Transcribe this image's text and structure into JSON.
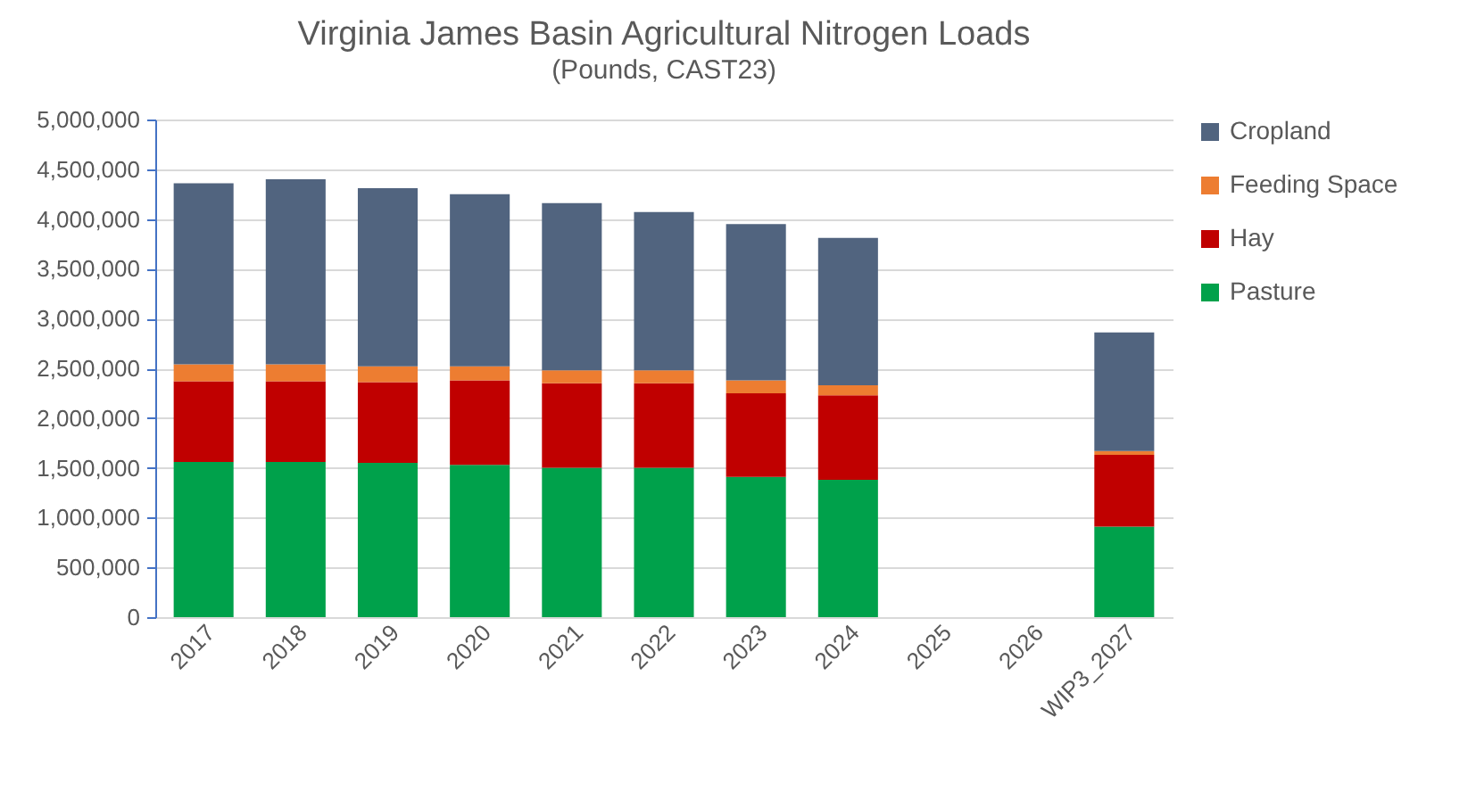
{
  "chart_data": {
    "type": "bar",
    "title": "Virginia James Basin Agricultural Nitrogen Loads",
    "subtitle": "(Pounds, CAST23)",
    "stacked": true,
    "categories": [
      "2017",
      "2018",
      "2019",
      "2020",
      "2021",
      "2022",
      "2023",
      "2024",
      "2025",
      "2026",
      "WIP3_2027"
    ],
    "series": [
      {
        "name": "Pasture",
        "color": "#00a14b",
        "values": [
          1560000,
          1560000,
          1550000,
          1530000,
          1500000,
          1500000,
          1410000,
          1380000,
          null,
          null,
          910000
        ]
      },
      {
        "name": "Hay",
        "color": "#c00000",
        "values": [
          810000,
          810000,
          810000,
          850000,
          850000,
          850000,
          840000,
          850000,
          null,
          null,
          720000
        ]
      },
      {
        "name": "Feeding Space",
        "color": "#ed7d31",
        "values": [
          170000,
          170000,
          160000,
          140000,
          130000,
          130000,
          130000,
          100000,
          null,
          null,
          40000
        ]
      },
      {
        "name": "Cropland",
        "color": "#51647f",
        "values": [
          1820000,
          1860000,
          1790000,
          1730000,
          1680000,
          1590000,
          1570000,
          1480000,
          null,
          null,
          1190000
        ]
      }
    ],
    "ylim": [
      0,
      5000000
    ],
    "yticks": [
      0,
      {
        "value": 500000,
        "label": "500,000"
      },
      {
        "value": 1000000,
        "label": "1,000,000"
      },
      {
        "value": 1500000,
        "label": "1,500,000"
      },
      {
        "value": 2000000,
        "label": "2,000,000"
      },
      {
        "value": 2500000,
        "label": "2,500,000"
      },
      {
        "value": 3000000,
        "label": "3,000,000"
      },
      {
        "value": 3500000,
        "label": "3,500,000"
      },
      {
        "value": 4000000,
        "label": "4,000,000"
      },
      {
        "value": 4500000,
        "label": "4,500,000"
      },
      {
        "value": 5000000,
        "label": "5,000,000"
      }
    ],
    "grid": "y",
    "legend": "right"
  }
}
